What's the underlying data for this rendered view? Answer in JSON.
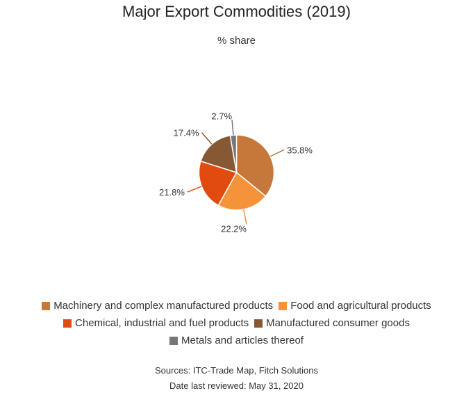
{
  "chart_data": {
    "type": "pie",
    "title": "Major Export Commodities (2019)",
    "subtitle": "% share",
    "slices": [
      {
        "name": "Machinery and complex manufactured products",
        "value": 35.8,
        "label": "35.8%",
        "color": "#C5783A"
      },
      {
        "name": "Food and agricultural products",
        "value": 22.2,
        "label": "22.2%",
        "color": "#F5933A"
      },
      {
        "name": "Chemical, industrial and fuel products",
        "value": 21.8,
        "label": "21.8%",
        "color": "#E24B10"
      },
      {
        "name": "Manufactured consumer goods",
        "value": 17.4,
        "label": "17.4%",
        "color": "#875834"
      },
      {
        "name": "Metals and articles thereof",
        "value": 2.7,
        "label": "2.7%",
        "color": "#777777"
      }
    ],
    "legend_position": "bottom"
  },
  "footer": {
    "sources": "Sources: ITC-Trade Map, Fitch Solutions",
    "date": "Date last reviewed: May 31, 2020"
  }
}
